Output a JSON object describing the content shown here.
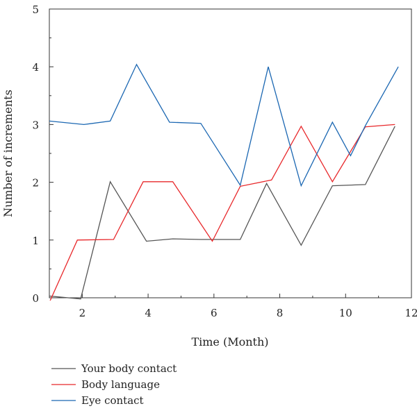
{
  "chart_data": {
    "type": "line",
    "title": "",
    "xlabel": "Time (Month)",
    "ylabel": "Number of increments",
    "xlim": [
      1,
      12
    ],
    "ylim": [
      0,
      5
    ],
    "xticks": [
      2,
      4,
      6,
      8,
      10,
      12
    ],
    "yticks": [
      0,
      1,
      2,
      3,
      4,
      5
    ],
    "xtick_labels": [
      "2",
      "4",
      "6",
      "8",
      "10",
      "12"
    ],
    "ytick_labels": [
      "0",
      "1",
      "2",
      "3",
      "4",
      "5"
    ],
    "grid": false,
    "legend_position": "bottom-left",
    "series": [
      {
        "name": "Your body contact",
        "color": "#555555",
        "x": [
          1.0,
          1.95,
          2.85,
          3.95,
          4.75,
          5.6,
          6.8,
          7.6,
          8.65,
          9.6,
          10.6,
          11.5
        ],
        "y": [
          0.03,
          -0.02,
          2.01,
          0.98,
          1.02,
          1.01,
          1.01,
          1.98,
          0.91,
          1.94,
          1.96,
          2.97
        ]
      },
      {
        "name": "Body language",
        "color": "#e8282b",
        "x": [
          1.0,
          1.85,
          2.95,
          3.85,
          4.75,
          5.95,
          6.8,
          7.75,
          8.65,
          9.6,
          10.6,
          11.5
        ],
        "y": [
          -0.08,
          1.0,
          1.01,
          2.01,
          2.01,
          0.98,
          1.93,
          2.04,
          2.97,
          2.01,
          2.96,
          3.0
        ]
      },
      {
        "name": "Eye contact",
        "color": "#1b67b2",
        "x": [
          1.0,
          2.05,
          2.85,
          3.65,
          4.65,
          5.6,
          6.8,
          7.65,
          8.65,
          9.6,
          10.15,
          10.6,
          11.6
        ],
        "y": [
          3.06,
          3.0,
          3.06,
          4.04,
          3.04,
          3.02,
          1.95,
          4.0,
          1.94,
          3.04,
          2.46,
          2.98,
          4.0
        ]
      }
    ]
  }
}
